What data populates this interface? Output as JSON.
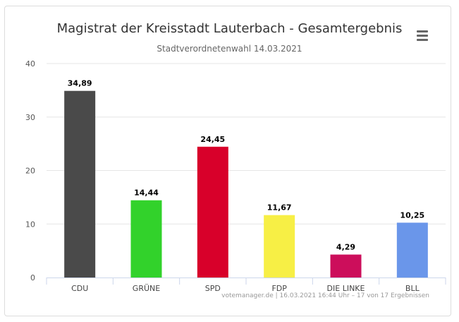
{
  "chart_data": {
    "type": "bar",
    "title": "Magistrat der Kreisstadt Lauterbach - Gesamtergebnis",
    "subtitle": "Stadtverordnetenwahl 14.03.2021",
    "categories": [
      "CDU",
      "GRÜNE",
      "SPD",
      "FDP",
      "DIE LINKE",
      "BLL"
    ],
    "values": [
      34.89,
      14.44,
      24.45,
      11.67,
      4.29,
      10.25
    ],
    "value_labels": [
      "34,89",
      "14,44",
      "24,45",
      "11,67",
      "4,29",
      "10,25"
    ],
    "colors": [
      "#4a4a4a",
      "#32d22b",
      "#d8002a",
      "#f7ef45",
      "#cc0e5b",
      "#6a96ea"
    ],
    "ylim": [
      0,
      40
    ],
    "yticks": [
      0,
      10,
      20,
      30,
      40
    ],
    "grid": true,
    "legend": "none",
    "credit": "votemanager.de | 16.03.2021 16:44 Uhr – 17 von 17 Ergebnissen"
  },
  "menu": {
    "icon": "hamburger-menu-icon"
  }
}
